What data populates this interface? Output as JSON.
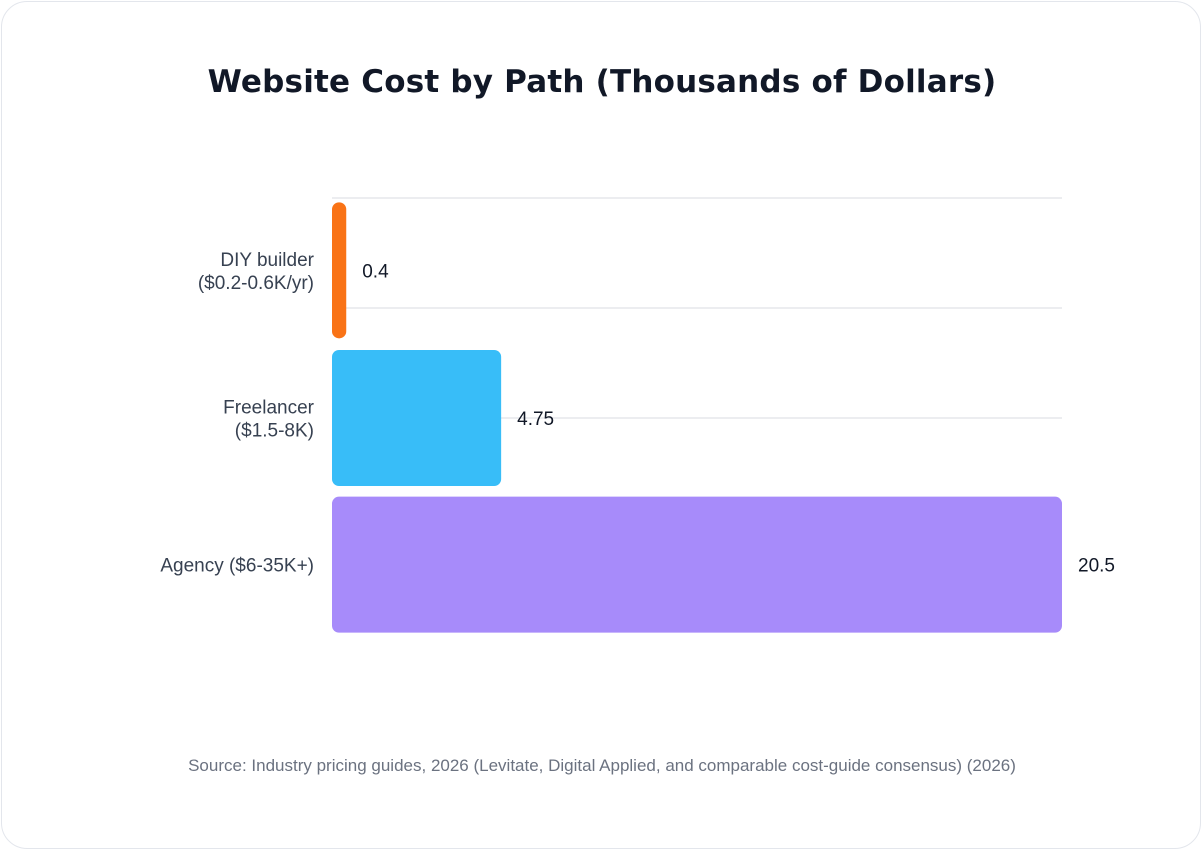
{
  "chart_data": {
    "type": "bar",
    "orientation": "horizontal",
    "title": "Website Cost by Path (Thousands of Dollars)",
    "categories": [
      "DIY builder ($0.2-0.6K/yr)",
      "Freelancer ($1.5-8K)",
      "Agency ($6-35K+)"
    ],
    "category_lines": [
      [
        "DIY builder",
        "($0.2-0.6K/yr)"
      ],
      [
        "Freelancer",
        "($1.5-8K)"
      ],
      [
        "Agency ($6-35K+)"
      ]
    ],
    "values": [
      0.4,
      4.75,
      20.5
    ],
    "value_labels": [
      "0.4",
      "4.75",
      "20.5"
    ],
    "colors": [
      "#f97316",
      "#38bdf8",
      "#a78bfa"
    ],
    "xlim": [
      0,
      20.5
    ],
    "grid": true,
    "xlabel": "",
    "ylabel": "",
    "source": "Source: Industry pricing guides, 2026 (Levitate, Digital Applied, and comparable cost-guide consensus) (2026)"
  }
}
